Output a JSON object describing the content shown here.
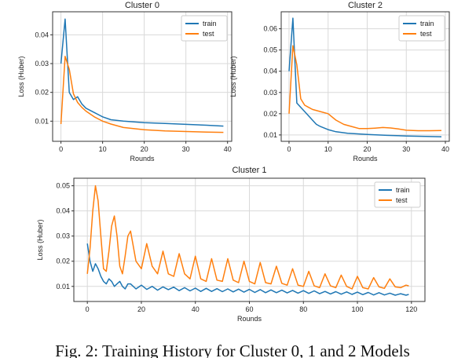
{
  "caption": "Fig. 2: Training History for Cluster 0, 1 and 2 Models",
  "colors": {
    "train": "#1f77b4",
    "test": "#ff7f0e"
  },
  "chart_data": [
    {
      "type": "line",
      "title": "Cluster 0",
      "xlabel": "Rounds",
      "ylabel": "Loss (Huber)",
      "xlim": [
        -2,
        41
      ],
      "ylim": [
        0.003,
        0.048
      ],
      "xticks": [
        0,
        10,
        20,
        30,
        40
      ],
      "yticks": [
        0.01,
        0.02,
        0.03,
        0.04
      ],
      "ytick_labels": [
        "0.01",
        "0.02",
        "0.03",
        "0.04"
      ],
      "grid": true,
      "legend": "top-right",
      "series": [
        {
          "name": "train",
          "color": "#1f77b4",
          "x": [
            0,
            1,
            2,
            3,
            4,
            5,
            6,
            8,
            10,
            12,
            15,
            20,
            25,
            30,
            35,
            39
          ],
          "y": [
            0.03,
            0.0455,
            0.02,
            0.0175,
            0.0185,
            0.016,
            0.0145,
            0.013,
            0.0115,
            0.0105,
            0.01,
            0.0095,
            0.0092,
            0.0089,
            0.0086,
            0.0083
          ]
        },
        {
          "name": "test",
          "color": "#ff7f0e",
          "x": [
            0,
            1,
            2,
            3,
            4,
            5,
            6,
            8,
            10,
            12,
            15,
            20,
            25,
            30,
            35,
            39
          ],
          "y": [
            0.009,
            0.0325,
            0.028,
            0.0195,
            0.0165,
            0.0148,
            0.0135,
            0.0115,
            0.01,
            0.009,
            0.0078,
            0.007,
            0.0066,
            0.0064,
            0.0062,
            0.0061
          ]
        }
      ]
    },
    {
      "type": "line",
      "title": "Cluster 2",
      "xlabel": "Rounds",
      "ylabel": "Loss (Huber)",
      "xlim": [
        -2,
        41
      ],
      "ylim": [
        0.007,
        0.068
      ],
      "xticks": [
        0,
        10,
        20,
        30,
        40
      ],
      "yticks": [
        0.01,
        0.02,
        0.03,
        0.04,
        0.05,
        0.06
      ],
      "ytick_labels": [
        "0.01",
        "0.02",
        "0.03",
        "0.04",
        "0.05",
        "0.06"
      ],
      "grid": true,
      "legend": "top-right",
      "series": [
        {
          "name": "train",
          "color": "#1f77b4",
          "x": [
            0,
            1,
            2,
            3,
            4,
            5,
            6,
            7,
            8,
            10,
            12,
            15,
            20,
            25,
            30,
            35,
            39
          ],
          "y": [
            0.04,
            0.065,
            0.025,
            0.023,
            0.021,
            0.019,
            0.017,
            0.015,
            0.014,
            0.0125,
            0.0115,
            0.0108,
            0.0102,
            0.0098,
            0.0095,
            0.0093,
            0.0091
          ]
        },
        {
          "name": "test",
          "color": "#ff7f0e",
          "x": [
            0,
            1,
            2,
            3,
            4,
            5,
            6,
            8,
            10,
            12,
            14,
            16,
            18,
            20,
            22,
            24,
            26,
            28,
            30,
            33,
            36,
            39
          ],
          "y": [
            0.02,
            0.052,
            0.043,
            0.027,
            0.024,
            0.023,
            0.022,
            0.021,
            0.02,
            0.017,
            0.015,
            0.014,
            0.013,
            0.013,
            0.0132,
            0.0135,
            0.0133,
            0.0128,
            0.0122,
            0.012,
            0.012,
            0.0121
          ]
        }
      ]
    },
    {
      "type": "line",
      "title": "Cluster 1",
      "xlabel": "Rounds",
      "ylabel": "Loss (Huber)",
      "xlim": [
        -5,
        125
      ],
      "ylim": [
        0.004,
        0.053
      ],
      "xticks": [
        0,
        20,
        40,
        60,
        80,
        100,
        120
      ],
      "yticks": [
        0.01,
        0.02,
        0.03,
        0.04,
        0.05
      ],
      "ytick_labels": [
        "0.01",
        "0.02",
        "0.03",
        "0.04",
        "0.05"
      ],
      "grid": true,
      "legend": "top-right",
      "series": [
        {
          "name": "train",
          "color": "#1f77b4",
          "x": [
            0,
            1,
            2,
            3,
            4,
            5,
            6,
            7,
            8,
            9,
            10,
            11,
            12,
            13,
            14,
            15,
            16,
            18,
            20,
            22,
            24,
            26,
            28,
            30,
            32,
            34,
            36,
            38,
            40,
            42,
            44,
            46,
            48,
            50,
            52,
            54,
            56,
            58,
            60,
            62,
            64,
            66,
            68,
            70,
            72,
            74,
            76,
            78,
            80,
            82,
            84,
            86,
            88,
            90,
            92,
            94,
            96,
            98,
            100,
            102,
            104,
            106,
            108,
            110,
            112,
            114,
            116,
            118,
            119
          ],
          "y": [
            0.027,
            0.02,
            0.016,
            0.019,
            0.017,
            0.014,
            0.012,
            0.011,
            0.013,
            0.012,
            0.01,
            0.011,
            0.012,
            0.01,
            0.009,
            0.011,
            0.011,
            0.009,
            0.0105,
            0.0088,
            0.01,
            0.0085,
            0.0098,
            0.0087,
            0.0097,
            0.0083,
            0.0095,
            0.0082,
            0.0093,
            0.008,
            0.0092,
            0.008,
            0.0091,
            0.0079,
            0.009,
            0.0078,
            0.0089,
            0.0077,
            0.0088,
            0.0076,
            0.0087,
            0.0075,
            0.0086,
            0.0075,
            0.0085,
            0.0074,
            0.0084,
            0.0073,
            0.0083,
            0.0072,
            0.0082,
            0.0071,
            0.008,
            0.007,
            0.0079,
            0.0069,
            0.0078,
            0.0068,
            0.0077,
            0.0067,
            0.0076,
            0.0066,
            0.0075,
            0.0066,
            0.0073,
            0.0065,
            0.0071,
            0.0065,
            0.0068
          ]
        },
        {
          "name": "test",
          "color": "#ff7f0e",
          "x": [
            0,
            1,
            2,
            3,
            4,
            5,
            6,
            7,
            8,
            9,
            10,
            11,
            12,
            13,
            14,
            15,
            16,
            18,
            20,
            22,
            24,
            26,
            28,
            30,
            32,
            34,
            36,
            38,
            40,
            42,
            44,
            46,
            48,
            50,
            52,
            54,
            56,
            58,
            60,
            62,
            64,
            66,
            68,
            70,
            72,
            74,
            76,
            78,
            80,
            82,
            84,
            86,
            88,
            90,
            92,
            94,
            96,
            98,
            100,
            102,
            104,
            106,
            108,
            110,
            112,
            114,
            116,
            118,
            119
          ],
          "y": [
            0.015,
            0.025,
            0.04,
            0.05,
            0.044,
            0.03,
            0.017,
            0.016,
            0.024,
            0.034,
            0.038,
            0.03,
            0.018,
            0.015,
            0.022,
            0.03,
            0.032,
            0.02,
            0.017,
            0.027,
            0.018,
            0.015,
            0.024,
            0.015,
            0.014,
            0.023,
            0.015,
            0.013,
            0.022,
            0.013,
            0.012,
            0.021,
            0.0125,
            0.012,
            0.021,
            0.0125,
            0.0115,
            0.02,
            0.012,
            0.011,
            0.0195,
            0.0115,
            0.011,
            0.018,
            0.0112,
            0.0105,
            0.017,
            0.0105,
            0.01,
            0.016,
            0.0102,
            0.0095,
            0.015,
            0.0102,
            0.0095,
            0.0145,
            0.01,
            0.009,
            0.014,
            0.0095,
            0.009,
            0.0135,
            0.0098,
            0.0092,
            0.013,
            0.0098,
            0.0095,
            0.0105,
            0.0102
          ]
        }
      ]
    }
  ]
}
